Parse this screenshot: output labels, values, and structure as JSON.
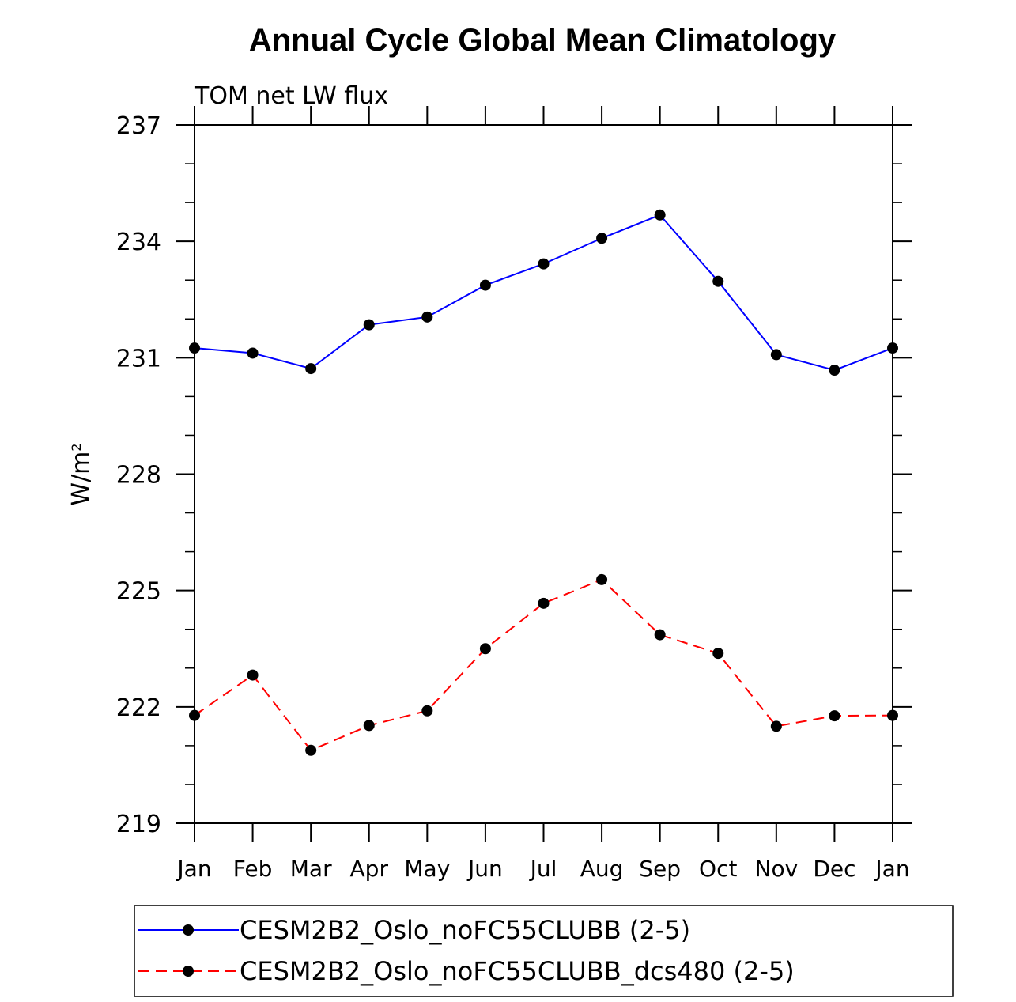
{
  "chart_data": {
    "type": "line",
    "title": "Annual Cycle Global Mean Climatology",
    "subtitle": "TOM net LW flux",
    "ylabel": "W/m",
    "ylabel_superscript": "2",
    "xlabel": "",
    "ylim": [
      219,
      237
    ],
    "yticks": [
      "219",
      "222",
      "225",
      "228",
      "231",
      "234",
      "237"
    ],
    "categories": [
      "Jan",
      "Feb",
      "Mar",
      "Apr",
      "May",
      "Jun",
      "Jul",
      "Aug",
      "Sep",
      "Oct",
      "Nov",
      "Dec",
      "Jan"
    ],
    "series": [
      {
        "name": "CESM2B2_Oslo_noFC55CLUBB (2-5)",
        "color": "#0000ff",
        "dash": "solid",
        "values": [
          231.25,
          231.12,
          230.72,
          231.85,
          232.05,
          232.87,
          233.42,
          234.08,
          234.68,
          232.97,
          231.08,
          230.68,
          231.25
        ]
      },
      {
        "name": "CESM2B2_Oslo_noFC55CLUBB_dcs480 (2-5)",
        "color": "#ff0000",
        "dash": "dashed",
        "values": [
          221.78,
          222.82,
          220.88,
          221.52,
          221.9,
          223.5,
          224.67,
          225.28,
          223.86,
          223.38,
          221.5,
          221.77,
          221.78
        ]
      }
    ],
    "legend": "bottom"
  }
}
